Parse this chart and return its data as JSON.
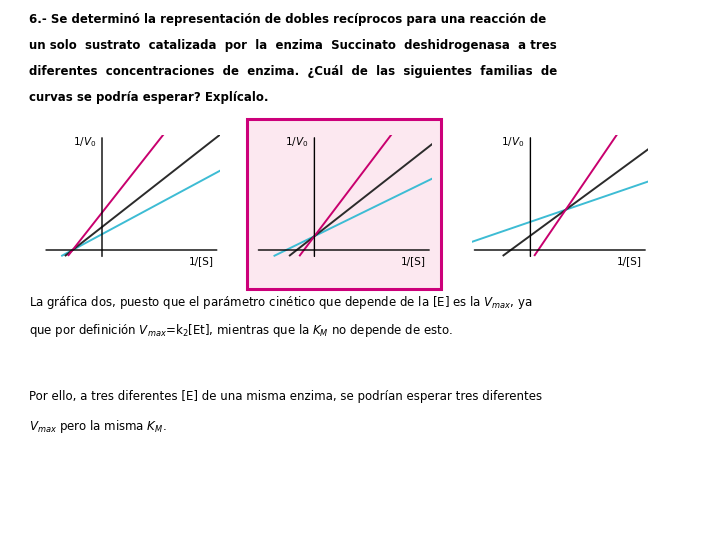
{
  "bg_color": "#ffffff",
  "title_line1": "6.- Se determinó la representación de dobles recíprocos para una reacción de",
  "title_line2": "un solo  sustrato  catalizada  por  la  enzima  Succinato  deshidrogenasa  a tres",
  "title_line3": "diferentes  concentraciones  de  enzima.  ¿Cuál  de  las  siguientes  familias  de",
  "title_line4": "curvas se podría esperar? Explícalo.",
  "title_fontsize": 8.5,
  "answer_line1": "La gráfica dos, puesto que el parámetro cinético que depende de la [E] es la $V_{max}$, ya",
  "answer_line2": "que por definición $V_{max}$=k$_2$[Et], mientras que la $K_M$ no depende de esto.",
  "answer_line3": "Por ello, a tres diferentes [E] de una misma enzima, se podrían esperar tres diferentes",
  "answer_line4": "$V_{max}$ pero la misma $K_M$.",
  "answer_fontsize": 8.5,
  "plot_colors_1": [
    "#333333",
    "#cc007a",
    "#cc007a"
  ],
  "plot_colors_2": [
    "#00aadd",
    "#333333",
    "#cc007a"
  ],
  "plot_colors_3": [
    "#00aadd",
    "#333333",
    "#cc007a"
  ],
  "highlight_border_color": "#cc007a",
  "highlight_face_color": "#fce8f0",
  "xlabel": "1/[S]",
  "ylabel": "1/$V_0$"
}
